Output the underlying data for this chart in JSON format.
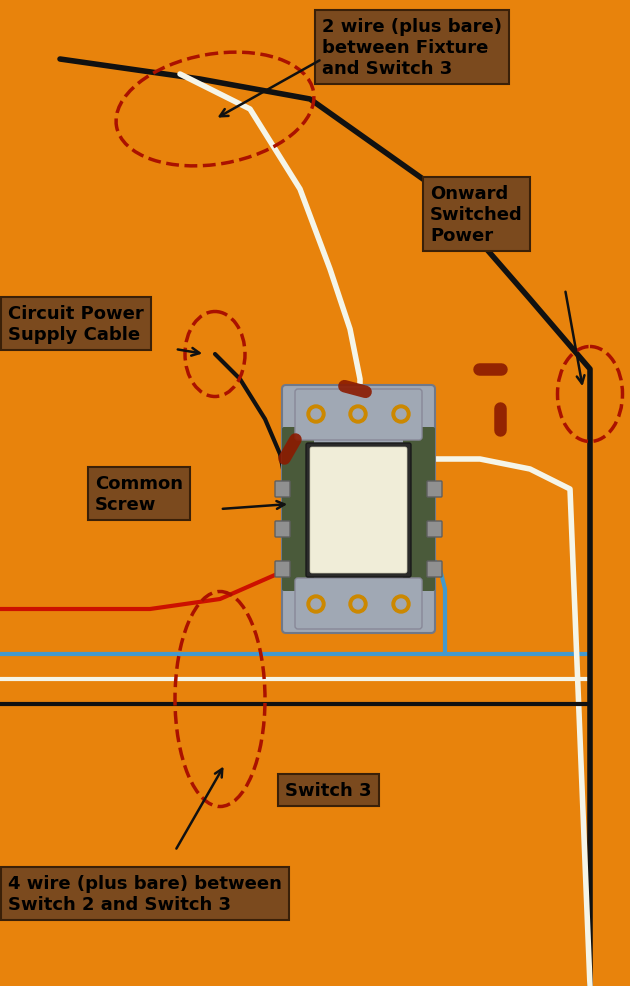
{
  "bg_color": "#E8830C",
  "wire_colors": {
    "black": "#111111",
    "white": "#f5f5e8",
    "red": "#cc1100",
    "blue": "#4499cc",
    "bare": "#c8a800"
  },
  "labels": {
    "fixture_wire": "2 wire (plus bare)\nbetween Fixture\nand Switch 3",
    "onward_power": "Onward\nSwitched\nPower",
    "circuit_power": "Circuit Power\nSupply Cable",
    "common_screw": "Common\nScrew",
    "switch3": "Switch 3",
    "four_wire": "4 wire (plus bare) between\nSwitch 2 and Switch 3"
  },
  "label_bg_color": "#7B4A1E",
  "label_text_color": "#000000",
  "switch_bg": "#a0a8b4",
  "switch_dark": "#4a5a3a",
  "switch_mid": "#858a90"
}
